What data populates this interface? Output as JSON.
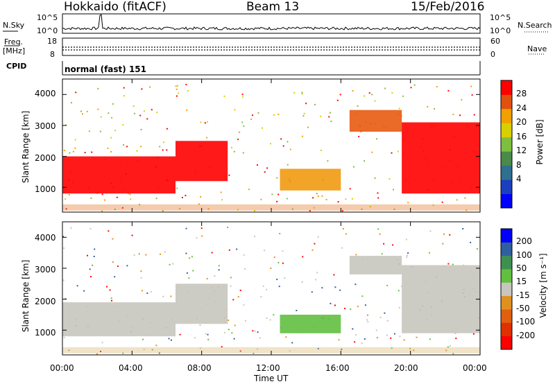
{
  "header": {
    "radar": "Hokkaido (fitACF)",
    "beam": "Beam 13",
    "date": "15/Feb/2016"
  },
  "strips": {
    "nsky_label": "N.Sky",
    "nsky_ticks": [
      "10^5",
      "10^0"
    ],
    "nsearch_label": "N.Search",
    "nsearch_ticks": [
      "10^5",
      "10^0"
    ],
    "freq_label_1": "Freq.",
    "freq_label_2": "[MHz]",
    "freq_ticks": [
      "18",
      "8"
    ],
    "nave_label": "Nave",
    "nave_ticks": [
      "60",
      "0"
    ],
    "cpid_label": "CPID",
    "cpid_value": "normal (fast) 151"
  },
  "axes": {
    "ylabel": "Slant Range [km]",
    "yticks": [
      "4000",
      "3000",
      "2000",
      "1000"
    ],
    "xticks": [
      "00:00",
      "04:00",
      "08:00",
      "12:00",
      "16:00",
      "20:00",
      "00:00"
    ],
    "xlabel": "Time UT"
  },
  "colorbars": {
    "power": {
      "label": "Power [dB]",
      "ticks": [
        "28",
        "24",
        "20",
        "16",
        "12",
        "8",
        "4"
      ],
      "colors": [
        "#0000ff",
        "#1a3fbf",
        "#2f6f8f",
        "#4a8a4a",
        "#7fbf3f",
        "#d8d000",
        "#f0a000",
        "#e05010",
        "#ff0000"
      ]
    },
    "velocity": {
      "label": "Velocity [m s⁻¹]",
      "ticks": [
        "200",
        "100",
        "50",
        "15",
        "-15",
        "-50",
        "-100",
        "-200"
      ],
      "colors": [
        "#ff0000",
        "#e03000",
        "#e06010",
        "#e09020",
        "#c8c6be",
        "#62c040",
        "#3f8f50",
        "#2f5f9f",
        "#0000ff"
      ]
    }
  },
  "chart_data": [
    {
      "type": "heatmap",
      "title": "Beam 13",
      "ylabel": "Slant Range [km]",
      "xlabel": "Time UT",
      "xlim": [
        0,
        24
      ],
      "ylim": [
        200,
        4500
      ],
      "colorbar": "Power [dB]",
      "regions": [
        {
          "t_start": 0.0,
          "t_end": 6.5,
          "range_low": 800,
          "range_high": 2000,
          "value_db": 28
        },
        {
          "t_start": 6.5,
          "t_end": 9.5,
          "range_low": 1200,
          "range_high": 2500,
          "value_db": 26
        },
        {
          "t_start": 12.5,
          "t_end": 16.0,
          "range_low": 900,
          "range_high": 1600,
          "value_db": 22
        },
        {
          "t_start": 16.5,
          "t_end": 19.5,
          "range_low": 2800,
          "range_high": 3500,
          "value_db": 24
        },
        {
          "t_start": 19.5,
          "t_end": 24.0,
          "range_low": 800,
          "range_high": 3100,
          "value_db": 28
        }
      ]
    },
    {
      "type": "heatmap",
      "title": "Beam 13",
      "ylabel": "Slant Range [km]",
      "xlabel": "Time UT",
      "xlim": [
        0,
        24
      ],
      "ylim": [
        200,
        4500
      ],
      "colorbar": "Velocity [m s⁻¹]",
      "regions": [
        {
          "t_start": 0.0,
          "t_end": 6.5,
          "range_low": 800,
          "range_high": 1900,
          "value_ms": 0
        },
        {
          "t_start": 6.5,
          "t_end": 9.5,
          "range_low": 1200,
          "range_high": 2500,
          "value_ms": 0
        },
        {
          "t_start": 12.5,
          "t_end": 16.0,
          "range_low": 900,
          "range_high": 1500,
          "value_ms": 40
        },
        {
          "t_start": 16.5,
          "t_end": 19.5,
          "range_low": 2800,
          "range_high": 3400,
          "value_ms": 0
        },
        {
          "t_start": 19.5,
          "t_end": 24.0,
          "range_low": 900,
          "range_high": 3100,
          "value_ms": 0
        }
      ]
    }
  ]
}
